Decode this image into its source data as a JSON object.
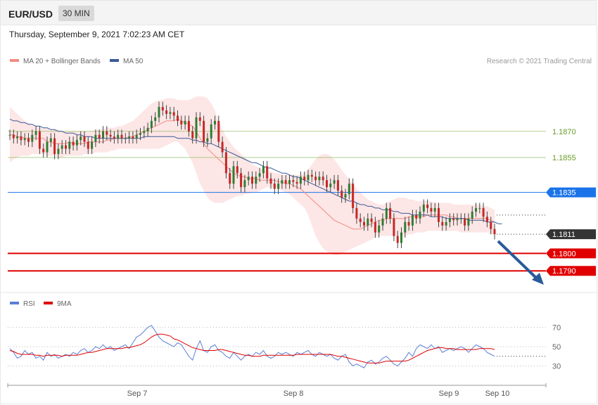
{
  "header": {
    "symbol": "EUR/USD",
    "timeframe": "30 MIN"
  },
  "datetime": "Thursday, September 9, 2021 7:02:23 AM CET",
  "legend": {
    "ma20": "MA 20 + Bollinger Bands",
    "ma50": "MA 50",
    "credit": "Research © 2021 Trading Central"
  },
  "rsi_legend": {
    "rsi": "RSI",
    "ma9": "9MA"
  },
  "colors": {
    "bull": "#2e7d32",
    "bear": "#c62828",
    "ma20": "#f28b82",
    "ma50": "#3a5a9a",
    "band": "#fde0e0",
    "support": "#e00000",
    "resistance": "#7cb342",
    "pivot": "#1a73e8",
    "price": "#333333",
    "rsi": "#5b7fd6",
    "arrow": "#2a5a9a"
  },
  "chart_data": [
    {
      "type": "candlestick",
      "x_ticks": [
        "Sep 7",
        "Sep 8",
        "Sep 9",
        "Sep 10"
      ],
      "y_range": [
        1.178,
        1.1905
      ],
      "levels": [
        {
          "value": 1.187,
          "label": "1.1870",
          "kind": "resistance"
        },
        {
          "value": 1.1855,
          "label": "1.1855",
          "kind": "resistance"
        },
        {
          "value": 1.1835,
          "label": "1.1835",
          "kind": "pivot"
        },
        {
          "value": 1.1811,
          "label": "1.1811",
          "kind": "price"
        },
        {
          "value": 1.18,
          "label": "1.1800",
          "kind": "support"
        },
        {
          "value": 1.179,
          "label": "1.1790",
          "kind": "support"
        }
      ],
      "close": [
        1.1868,
        1.1866,
        1.1867,
        1.1865,
        1.1866,
        1.1864,
        1.1868,
        1.187,
        1.186,
        1.1858,
        1.1864,
        1.1866,
        1.1857,
        1.186,
        1.1862,
        1.186,
        1.1864,
        1.1862,
        1.1865,
        1.1867,
        1.1864,
        1.186,
        1.1864,
        1.1868,
        1.1866,
        1.187,
        1.1868,
        1.1867,
        1.1866,
        1.1868,
        1.1866,
        1.1866,
        1.1867,
        1.1866,
        1.1868,
        1.1869,
        1.187,
        1.1872,
        1.1876,
        1.1878,
        1.1884,
        1.1882,
        1.188,
        1.1881,
        1.1879,
        1.1876,
        1.1874,
        1.1876,
        1.187,
        1.1866,
        1.1878,
        1.1876,
        1.1864,
        1.1866,
        1.1874,
        1.1876,
        1.1864,
        1.1858,
        1.1846,
        1.184,
        1.185,
        1.1846,
        1.1838,
        1.1842,
        1.1844,
        1.184,
        1.1844,
        1.1846,
        1.185,
        1.1843,
        1.184,
        1.1837,
        1.184,
        1.1842,
        1.184,
        1.1842,
        1.1841,
        1.184,
        1.1844,
        1.1842,
        1.1845,
        1.1844,
        1.1842,
        1.1844,
        1.1842,
        1.1838,
        1.184,
        1.1842,
        1.1836,
        1.1832,
        1.1834,
        1.184,
        1.1826,
        1.182,
        1.1818,
        1.1816,
        1.182,
        1.1818,
        1.1812,
        1.1816,
        1.182,
        1.1826,
        1.182,
        1.181,
        1.1806,
        1.1812,
        1.1818,
        1.1816,
        1.1822,
        1.182,
        1.1824,
        1.1828,
        1.1826,
        1.1824,
        1.1826,
        1.1818,
        1.1816,
        1.1818,
        1.182,
        1.1819,
        1.182,
        1.182,
        1.1816,
        1.182,
        1.1824,
        1.1826,
        1.1826,
        1.1821,
        1.1818,
        1.1814,
        1.1811
      ],
      "ma20": [
        1.1868,
        1.1868,
        1.1867,
        1.1867,
        1.1866,
        1.1866,
        1.1866,
        1.1866,
        1.1866,
        1.1866,
        1.1864,
        1.1864,
        1.1863,
        1.1863,
        1.1863,
        1.1863,
        1.1864,
        1.1863,
        1.1863,
        1.1863,
        1.1863,
        1.1864,
        1.1864,
        1.1864,
        1.1864,
        1.1864,
        1.1865,
        1.1865,
        1.1866,
        1.1866,
        1.1866,
        1.1866,
        1.1867,
        1.1867,
        1.1868,
        1.1869,
        1.187,
        1.1871,
        1.1872,
        1.1873,
        1.1874,
        1.1875,
        1.1876,
        1.1876,
        1.1876,
        1.1877,
        1.1876,
        1.1875,
        1.1874,
        1.1873,
        1.187,
        1.1866,
        1.1863,
        1.186,
        1.1858,
        1.1856,
        1.1854,
        1.1852,
        1.185,
        1.1848,
        1.1846,
        1.1845,
        1.1844,
        1.1844,
        1.1843,
        1.1843,
        1.1843,
        1.1842,
        1.1842,
        1.1842,
        1.1842,
        1.1842,
        1.1841,
        1.1841,
        1.184,
        1.184,
        1.1839,
        1.1838,
        1.1837,
        1.1835,
        1.1833,
        1.1831,
        1.1829,
        1.1827,
        1.1825,
        1.1823,
        1.1821,
        1.1819,
        1.1818,
        1.1817,
        1.1816,
        1.1815,
        1.1814,
        1.1814,
        1.1814,
        1.1815,
        1.1816,
        1.1817,
        1.1818,
        1.1819,
        1.1819,
        1.182,
        1.182,
        1.182,
        1.182,
        1.182,
        1.182,
        1.1821,
        1.1821,
        1.1821,
        1.1821,
        1.1821,
        1.1822,
        1.1822,
        1.1822,
        1.1822,
        1.1822,
        1.1822,
        1.1821,
        1.1821,
        1.182,
        1.182,
        1.182,
        1.182,
        1.182,
        1.182,
        1.182,
        1.182,
        1.182,
        1.1819,
        1.1818
      ],
      "band_upper": [
        1.1884,
        1.1882,
        1.188,
        1.1878,
        1.1876,
        1.1875,
        1.1874,
        1.1873,
        1.1872,
        1.1872,
        1.1872,
        1.1871,
        1.1871,
        1.1871,
        1.187,
        1.187,
        1.187,
        1.187,
        1.187,
        1.187,
        1.187,
        1.187,
        1.187,
        1.1871,
        1.1871,
        1.1871,
        1.1872,
        1.1872,
        1.1872,
        1.1873,
        1.1873,
        1.1874,
        1.1875,
        1.1876,
        1.1878,
        1.188,
        1.1882,
        1.1884,
        1.1886,
        1.1887,
        1.1888,
        1.1888,
        1.1889,
        1.1889,
        1.1889,
        1.1888,
        1.1888,
        1.1888,
        1.1888,
        1.1889,
        1.189,
        1.189,
        1.189,
        1.1889,
        1.1886,
        1.1882,
        1.1876,
        1.1871,
        1.1867,
        1.1864,
        1.1861,
        1.1859,
        1.1857,
        1.1855,
        1.1853,
        1.1851,
        1.185,
        1.1849,
        1.1848,
        1.1847,
        1.1847,
        1.1846,
        1.1846,
        1.1845,
        1.1845,
        1.1845,
        1.1845,
        1.1845,
        1.1845,
        1.1846,
        1.1848,
        1.1851,
        1.1854,
        1.1856,
        1.1857,
        1.1857,
        1.1856,
        1.1854,
        1.1851,
        1.1848,
        1.1845,
        1.1843,
        1.184,
        1.1837,
        1.1835,
        1.1833,
        1.1831,
        1.183,
        1.1829,
        1.1828,
        1.1828,
        1.1829,
        1.183,
        1.1831,
        1.1832,
        1.1832,
        1.1832,
        1.1831,
        1.1831,
        1.183,
        1.183,
        1.183,
        1.183,
        1.183,
        1.1829,
        1.1829,
        1.1829,
        1.1829,
        1.1829,
        1.1828,
        1.1828,
        1.1828,
        1.1828,
        1.1828,
        1.1828,
        1.1828,
        1.1828,
        1.1827,
        1.1827,
        1.1826,
        1.1825
      ],
      "band_lower": [
        1.1852,
        1.1854,
        1.1855,
        1.1856,
        1.1856,
        1.1856,
        1.1857,
        1.1857,
        1.1857,
        1.1857,
        1.1856,
        1.1856,
        1.1856,
        1.1855,
        1.1855,
        1.1856,
        1.1856,
        1.1856,
        1.1856,
        1.1856,
        1.1857,
        1.1857,
        1.1857,
        1.1858,
        1.1858,
        1.1858,
        1.1858,
        1.1859,
        1.1859,
        1.186,
        1.186,
        1.186,
        1.186,
        1.186,
        1.186,
        1.186,
        1.186,
        1.186,
        1.186,
        1.186,
        1.186,
        1.1861,
        1.1862,
        1.1863,
        1.1864,
        1.1864,
        1.1862,
        1.186,
        1.1856,
        1.1852,
        1.1846,
        1.184,
        1.1836,
        1.1832,
        1.183,
        1.1829,
        1.1829,
        1.1829,
        1.183,
        1.1831,
        1.1832,
        1.1833,
        1.1833,
        1.1834,
        1.1834,
        1.1835,
        1.1835,
        1.1836,
        1.1837,
        1.1838,
        1.1838,
        1.1838,
        1.1837,
        1.1836,
        1.1835,
        1.1834,
        1.1832,
        1.183,
        1.1828,
        1.1826,
        1.1822,
        1.1816,
        1.181,
        1.1806,
        1.1803,
        1.1801,
        1.18,
        1.1799,
        1.1799,
        1.18,
        1.1801,
        1.1802,
        1.1803,
        1.1804,
        1.1805,
        1.1806,
        1.1807,
        1.1808,
        1.1809,
        1.181,
        1.181,
        1.181,
        1.181,
        1.181,
        1.181,
        1.181,
        1.181,
        1.1811,
        1.1811,
        1.1812,
        1.1812,
        1.1812,
        1.1813,
        1.1813,
        1.1813,
        1.1813,
        1.1813,
        1.1813,
        1.1813,
        1.1813,
        1.1813,
        1.1812,
        1.1812,
        1.1812,
        1.1812,
        1.1812,
        1.1812,
        1.1812,
        1.1812,
        1.1811,
        1.1811
      ],
      "ma50": [
        1.1877,
        1.1876,
        1.1876,
        1.1875,
        1.1875,
        1.1874,
        1.1874,
        1.1873,
        1.1873,
        1.1872,
        1.1872,
        1.1871,
        1.1871,
        1.187,
        1.187,
        1.1869,
        1.1869,
        1.1869,
        1.1868,
        1.1868,
        1.1867,
        1.1867,
        1.1867,
        1.1866,
        1.1866,
        1.1866,
        1.1866,
        1.1866,
        1.1866,
        1.1866,
        1.1866,
        1.1866,
        1.1866,
        1.1866,
        1.1866,
        1.1866,
        1.1867,
        1.1867,
        1.1867,
        1.1867,
        1.1867,
        1.1867,
        1.1867,
        1.1867,
        1.1867,
        1.1866,
        1.1866,
        1.1866,
        1.1866,
        1.1865,
        1.1865,
        1.1864,
        1.1864,
        1.1863,
        1.1863,
        1.1862,
        1.1861,
        1.186,
        1.1859,
        1.1858,
        1.1857,
        1.1856,
        1.1855,
        1.1854,
        1.1853,
        1.1852,
        1.1852,
        1.1851,
        1.185,
        1.1849,
        1.1849,
        1.1848,
        1.1847,
        1.1846,
        1.1846,
        1.1845,
        1.1844,
        1.1844,
        1.1843,
        1.1842,
        1.1841,
        1.184,
        1.1839,
        1.1838,
        1.1837,
        1.1836,
        1.1835,
        1.1834,
        1.1833,
        1.1832,
        1.1831,
        1.183,
        1.183,
        1.1829,
        1.1828,
        1.1828,
        1.1827,
        1.1827,
        1.1826,
        1.1826,
        1.1825,
        1.1825,
        1.1825,
        1.1824,
        1.1824,
        1.1823,
        1.1823,
        1.1823,
        1.1822,
        1.1822,
        1.1822,
        1.1822,
        1.1822,
        1.1821,
        1.1821,
        1.1821,
        1.1821,
        1.182,
        1.182,
        1.182,
        1.182,
        1.182,
        1.182,
        1.1819,
        1.1819,
        1.1819,
        1.1819,
        1.1819,
        1.1818,
        1.1818,
        1.1818,
        1.1817,
        1.1817
      ]
    },
    {
      "type": "line",
      "y_ticks": [
        "70",
        "50",
        "30"
      ],
      "y_range": [
        15,
        85
      ],
      "series": [
        {
          "name": "RSI",
          "values": [
            48,
            44,
            38,
            40,
            46,
            42,
            44,
            38,
            40,
            36,
            44,
            40,
            42,
            38,
            40,
            42,
            40,
            44,
            42,
            46,
            48,
            44,
            46,
            50,
            48,
            52,
            48,
            50,
            46,
            48,
            50,
            52,
            48,
            54,
            60,
            62,
            66,
            70,
            72,
            66,
            60,
            56,
            54,
            52,
            50,
            54,
            52,
            46,
            40,
            36,
            48,
            56,
            46,
            44,
            50,
            52,
            46,
            44,
            40,
            38,
            44,
            40,
            36,
            40,
            42,
            40,
            44,
            42,
            46,
            40,
            38,
            40,
            44,
            42,
            44,
            42,
            40,
            44,
            42,
            44,
            46,
            42,
            40,
            44,
            42,
            40,
            42,
            38,
            36,
            40,
            42,
            34,
            30,
            32,
            30,
            28,
            34,
            36,
            32,
            34,
            38,
            40,
            36,
            32,
            30,
            34,
            38,
            44,
            40,
            48,
            52,
            50,
            48,
            52,
            48,
            50,
            44,
            46,
            48,
            46,
            48,
            50,
            48,
            44,
            48,
            52,
            50,
            48,
            44,
            42,
            40
          ]
        },
        {
          "name": "9MA",
          "values": [
            46,
            45,
            43,
            42,
            42,
            42,
            42,
            41,
            41,
            40,
            41,
            41,
            41,
            41,
            40,
            41,
            41,
            41,
            41,
            42,
            43,
            44,
            44,
            45,
            46,
            47,
            48,
            48,
            48,
            48,
            48,
            49,
            49,
            50,
            51,
            52,
            54,
            57,
            60,
            62,
            63,
            63,
            62,
            61,
            58,
            57,
            55,
            53,
            51,
            49,
            48,
            47,
            46,
            46,
            46,
            46,
            47,
            47,
            46,
            45,
            44,
            43,
            42,
            41,
            41,
            40,
            40,
            40,
            41,
            41,
            41,
            41,
            41,
            41,
            41,
            41,
            41,
            42,
            42,
            42,
            42,
            42,
            42,
            42,
            42,
            42,
            42,
            41,
            40,
            40,
            39,
            38,
            37,
            36,
            35,
            34,
            33,
            33,
            33,
            33,
            34,
            35,
            35,
            35,
            35,
            35,
            35,
            36,
            38,
            40,
            42,
            44,
            46,
            47,
            48,
            49,
            49,
            48,
            48,
            48,
            47,
            47,
            47,
            47,
            47,
            47,
            48,
            48,
            48,
            48,
            47
          ]
        }
      ]
    }
  ]
}
